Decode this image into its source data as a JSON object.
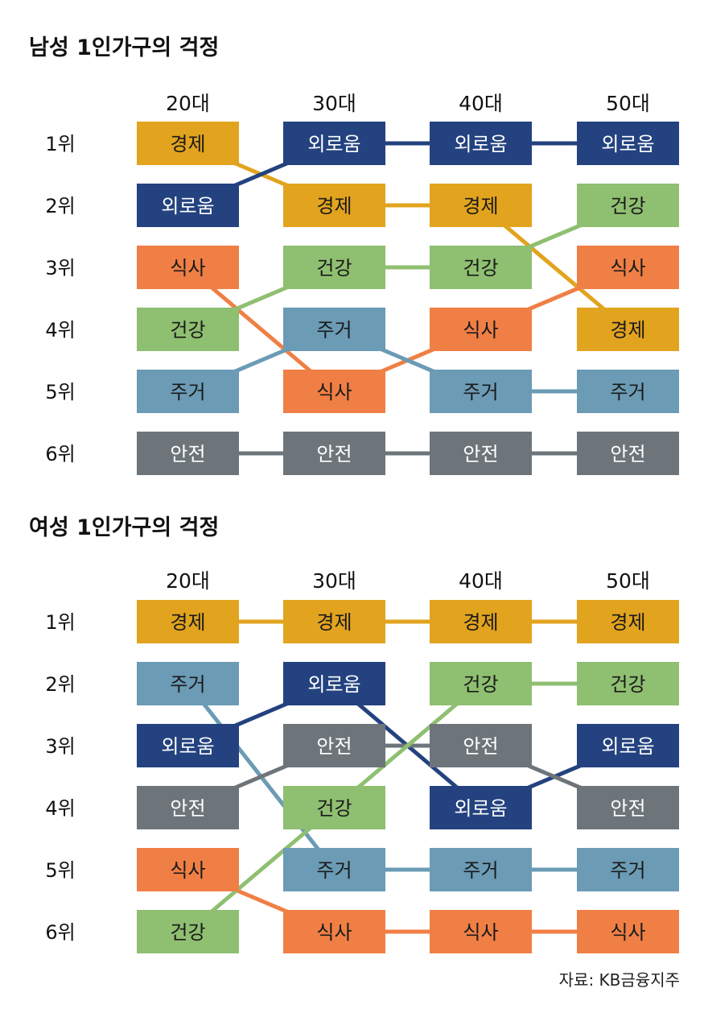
{
  "colors": {
    "경제": "#e2a31e",
    "외로움": "#23427f",
    "식사": "#f07f45",
    "건강": "#8fbf70",
    "주거": "#6b9bb5",
    "안전": "#6d757b"
  },
  "text_colors": {
    "경제": "#1a1a1a",
    "외로움": "#ffffff",
    "식사": "#1a1a1a",
    "건강": "#1a1a1a",
    "주거": "#1a1a1a",
    "안전": "#ffffff"
  },
  "source": "자료: KB금융지주",
  "chart_data": [
    {
      "type": "bump",
      "title": "남성 1인가구의 걱정",
      "columns": [
        "20대",
        "30대",
        "40대",
        "50대"
      ],
      "ranks": [
        "1위",
        "2위",
        "3위",
        "4위",
        "5위",
        "6위"
      ],
      "rankings": [
        [
          "경제",
          "외로움",
          "식사",
          "건강",
          "주거",
          "안전"
        ],
        [
          "외로움",
          "경제",
          "건강",
          "주거",
          "식사",
          "안전"
        ],
        [
          "외로움",
          "경제",
          "건강",
          "식사",
          "주거",
          "안전"
        ],
        [
          "외로움",
          "건강",
          "식사",
          "경제",
          "주거",
          "안전"
        ]
      ]
    },
    {
      "type": "bump",
      "title": "여성 1인가구의 걱정",
      "columns": [
        "20대",
        "30대",
        "40대",
        "50대"
      ],
      "ranks": [
        "1위",
        "2위",
        "3위",
        "4위",
        "5위",
        "6위"
      ],
      "rankings": [
        [
          "경제",
          "주거",
          "외로움",
          "안전",
          "식사",
          "건강"
        ],
        [
          "경제",
          "외로움",
          "안전",
          "건강",
          "주거",
          "식사"
        ],
        [
          "경제",
          "건강",
          "안전",
          "외로움",
          "주거",
          "식사"
        ],
        [
          "경제",
          "건강",
          "외로움",
          "안전",
          "주거",
          "식사"
        ]
      ]
    }
  ]
}
